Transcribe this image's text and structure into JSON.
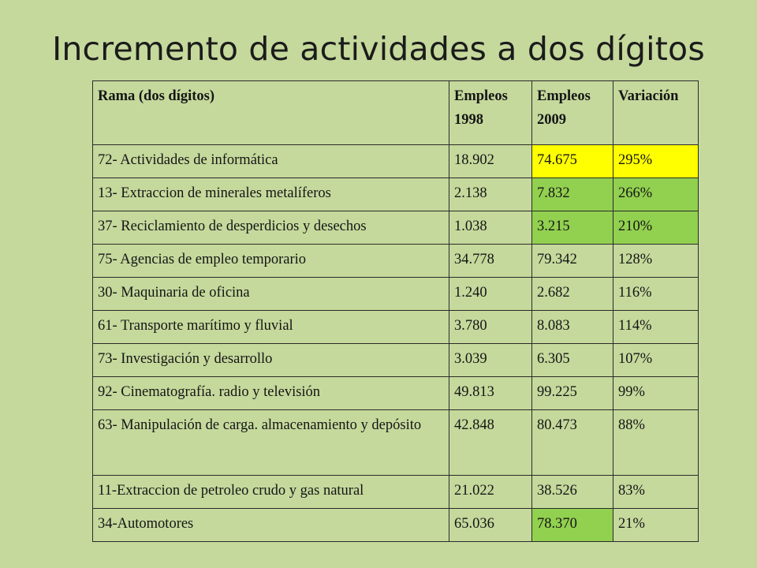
{
  "title": "Incremento de actividades a dos dígitos",
  "colors": {
    "background": "#c5d99c",
    "highlight_yellow": "#ffff00",
    "highlight_green": "#92d050"
  },
  "table": {
    "headers": [
      "Rama (dos dígitos)",
      "Empleos 1998",
      "Empleos 2009",
      "Variación"
    ],
    "rows": [
      {
        "rama": "72- Actividades de informática",
        "e1998": "18.902",
        "e2009": "74.675",
        "var": "295%"
      },
      {
        "rama": "13- Extraccion de minerales metalíferos",
        "e1998": "2.138",
        "e2009": "7.832",
        "var": "266%"
      },
      {
        "rama": "37- Reciclamiento de desperdicios y desechos",
        "e1998": "1.038",
        "e2009": "3.215",
        "var": "210%"
      },
      {
        "rama": "75- Agencias de empleo temporario",
        "e1998": "34.778",
        "e2009": "79.342",
        "var": "128%"
      },
      {
        "rama": "30- Maquinaria de oficina",
        "e1998": "1.240",
        "e2009": "2.682",
        "var": "116%"
      },
      {
        "rama": "61- Transporte marítimo y fluvial",
        "e1998": "3.780",
        "e2009": "8.083",
        "var": "114%"
      },
      {
        "rama": "73- Investigación y desarrollo",
        "e1998": "3.039",
        "e2009": "6.305",
        "var": "107%"
      },
      {
        "rama": "92- Cinematografía. radio y televisión",
        "e1998": "49.813",
        "e2009": "99.225",
        "var": "99%"
      },
      {
        "rama": "63- Manipulación de carga. almacenamiento y depósito",
        "e1998": "42.848",
        "e2009": "80.473",
        "var": "88%"
      },
      {
        "rama": "11-Extraccion de petroleo crudo y gas natural",
        "e1998": "21.022",
        "e2009": "38.526",
        "var": "83%"
      },
      {
        "rama": "34-Automotores",
        "e1998": "65.036",
        "e2009": "78.370",
        "var": "21%"
      }
    ]
  }
}
